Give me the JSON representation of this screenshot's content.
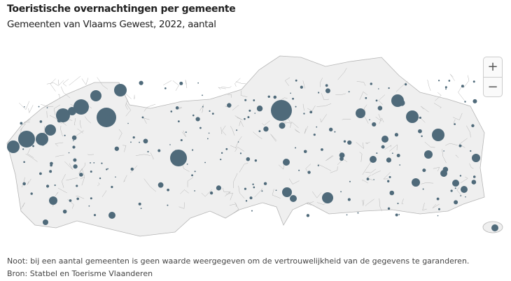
{
  "header": {
    "title": "Toeristische overnachtingen per gemeente",
    "subtitle": "Gemeenten van Vlaams Gewest, 2022, aantal"
  },
  "map": {
    "region": "Vlaams Gewest",
    "bubble_color": "#4f6a7a",
    "land_color": "#efefef",
    "border_color": "#b5b5b5"
  },
  "controls": {
    "zoom_in": "+",
    "zoom_out": "−"
  },
  "footer": {
    "note": "Noot: bij een aantal gemeenten is geen waarde weergegeven om de vertrouwelijkheid van de gegevens te garanderen.",
    "source": "Bron: Statbel en Toerisme Vlaanderen"
  }
}
